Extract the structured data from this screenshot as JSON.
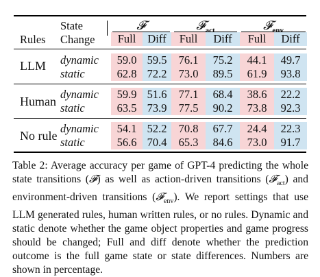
{
  "table": {
    "header": {
      "rules": "Rules",
      "state_change_line1": "State",
      "state_change_line2": "Change",
      "groups": [
        {
          "symbol": "𝓕",
          "sub": ""
        },
        {
          "symbol": "𝓕",
          "sub": "act"
        },
        {
          "symbol": "𝓕",
          "sub": "env"
        }
      ],
      "full": "Full",
      "diff": "Diff"
    },
    "rows": [
      {
        "rule": "LLM",
        "change": "dynamic",
        "values": [
          "59.0",
          "59.5",
          "76.1",
          "75.2",
          "44.1",
          "49.7"
        ]
      },
      {
        "rule": "",
        "change": "static",
        "values": [
          "62.8",
          "72.2",
          "73.0",
          "89.5",
          "61.9",
          "93.8"
        ]
      },
      {
        "rule": "Human",
        "change": "dynamic",
        "values": [
          "59.9",
          "51.6",
          "77.1",
          "68.4",
          "38.6",
          "22.2"
        ]
      },
      {
        "rule": "",
        "change": "static",
        "values": [
          "63.5",
          "73.9",
          "77.5",
          "90.2",
          "73.8",
          "92.3"
        ]
      },
      {
        "rule": "No rule",
        "change": "dynamic",
        "values": [
          "54.1",
          "52.2",
          "70.8",
          "67.7",
          "24.4",
          "22.3"
        ]
      },
      {
        "rule": "",
        "change": "static",
        "values": [
          "56.6",
          "70.4",
          "65.3",
          "84.6",
          "73.0",
          "91.7"
        ]
      }
    ],
    "colors": {
      "full": "#f8d5d6",
      "diff": "#cfe4f1"
    }
  },
  "caption": {
    "label": "Table 2:",
    "part1": "Average accuracy per game of GPT-4 predicting the whole state transitions (",
    "f": "𝓕",
    "part2": ") as well as action-driven transitions (",
    "f_act_sub": "act",
    "part3": ") and environment-driven transitions (",
    "f_env_sub": "env",
    "part4": "). We report settings that use LLM generated rules, human written rules, or no rules. Dynamic and static denote whether the game object properties and game progress should be changed; Full and diff denote whether the prediction outcome is the full game state or state differences. Numbers are shown in percentage."
  }
}
